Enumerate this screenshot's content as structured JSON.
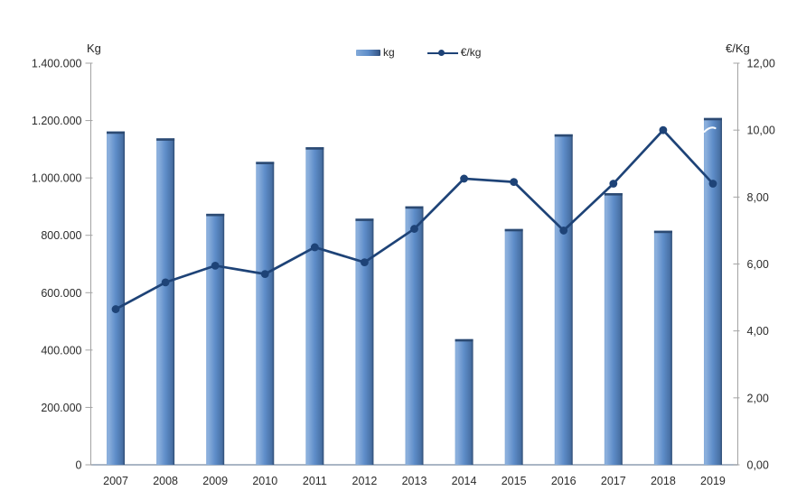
{
  "chart_data": {
    "type": "bar",
    "subtype": "combo-bar-line",
    "title": "",
    "categories": [
      "2007",
      "2008",
      "2009",
      "2010",
      "2011",
      "2012",
      "2013",
      "2014",
      "2015",
      "2016",
      "2017",
      "2018",
      "2019"
    ],
    "series": [
      {
        "name": "kg",
        "type": "bar",
        "axis": "left",
        "values": [
          1162000,
          1138000,
          875000,
          1056000,
          1107000,
          858000,
          901000,
          438000,
          822000,
          1152000,
          947000,
          816000,
          1209000
        ]
      },
      {
        "name": "€/kg",
        "type": "line",
        "axis": "right",
        "values": [
          4.65,
          5.45,
          5.95,
          5.7,
          6.5,
          6.05,
          7.05,
          8.55,
          8.45,
          7.0,
          8.4,
          10.0,
          8.4
        ]
      }
    ],
    "left_axis": {
      "title": "Kg",
      "min": 0,
      "max": 1400000,
      "step": 200000,
      "tick_labels": [
        "0",
        "200.000",
        "400.000",
        "600.000",
        "800.000",
        "1.000.000",
        "1.200.000",
        "1.400.000"
      ]
    },
    "right_axis": {
      "title": "€/Kg",
      "min": 0,
      "max": 12,
      "step": 2,
      "tick_labels": [
        "0,00",
        "2,00",
        "4,00",
        "6,00",
        "8,00",
        "10,00",
        "12,00"
      ]
    },
    "legend": {
      "position": "top",
      "entries": [
        {
          "label": "kg",
          "marker": "bar-swatch"
        },
        {
          "label": "€/kg",
          "marker": "line-swatch"
        }
      ]
    },
    "grid": "off",
    "colors": {
      "bar_light": "#83AAD9",
      "bar_mid": "#5E8DC9",
      "bar_dark": "#3B5C8D",
      "bar_top": "#2C4A72",
      "line": "#1E4377",
      "axis": "#A3A3A3",
      "baseline": "#8D9DB2",
      "text": "#2B2B2B"
    }
  }
}
